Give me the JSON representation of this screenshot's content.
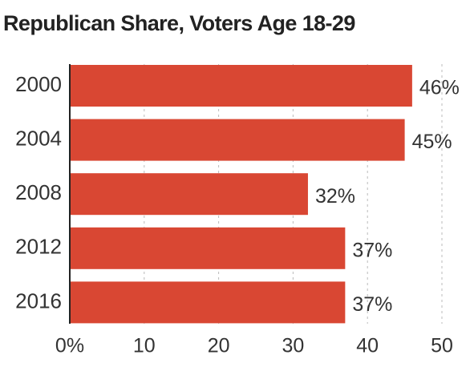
{
  "chart_data": {
    "type": "bar",
    "orientation": "horizontal",
    "title": "Republican Share, Voters Age 18-29",
    "xlabel": "",
    "ylabel": "",
    "categories": [
      "2000",
      "2004",
      "2008",
      "2012",
      "2016"
    ],
    "values": [
      46,
      45,
      32,
      37,
      37
    ],
    "value_labels": [
      "46%",
      "45%",
      "32%",
      "37%",
      "37%"
    ],
    "xlim": [
      0,
      50
    ],
    "x_ticks": [
      0,
      10,
      20,
      30,
      40,
      50
    ],
    "x_tick_labels": [
      "0%",
      "10",
      "20",
      "30",
      "40",
      "50"
    ],
    "grid": "vertical dashed",
    "colors": {
      "bar": "#d94733",
      "grid": "#bbbbbb",
      "axis": "#222222"
    }
  }
}
